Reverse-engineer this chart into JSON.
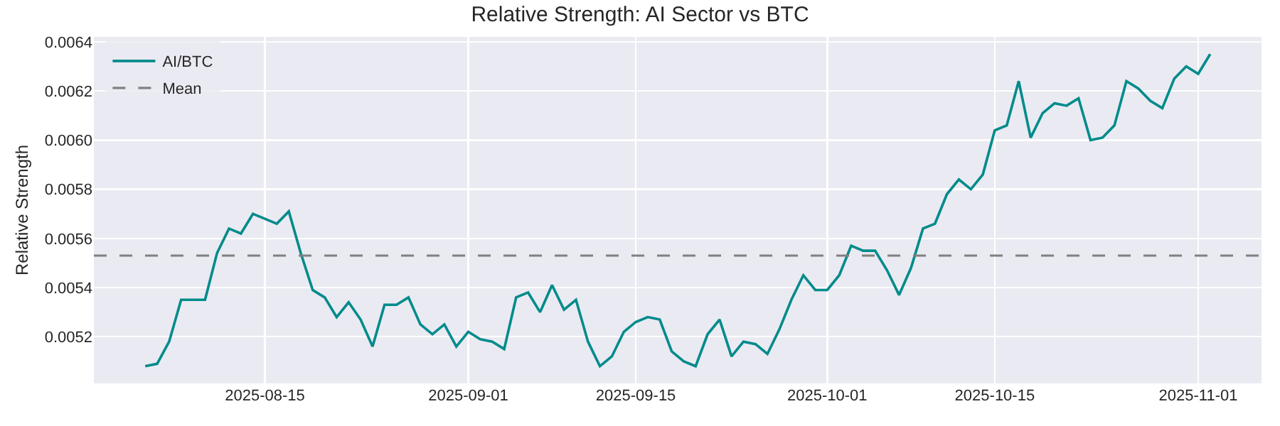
{
  "chart_data": {
    "type": "line",
    "title": "Relative Strength: AI Sector vs BTC",
    "ylabel": "Relative Strength",
    "x": [
      "2025-08-05",
      "2025-08-06",
      "2025-08-07",
      "2025-08-08",
      "2025-08-09",
      "2025-08-10",
      "2025-08-11",
      "2025-08-12",
      "2025-08-13",
      "2025-08-14",
      "2025-08-15",
      "2025-08-16",
      "2025-08-17",
      "2025-08-18",
      "2025-08-19",
      "2025-08-20",
      "2025-08-21",
      "2025-08-22",
      "2025-08-23",
      "2025-08-24",
      "2025-08-25",
      "2025-08-26",
      "2025-08-27",
      "2025-08-28",
      "2025-08-29",
      "2025-08-30",
      "2025-08-31",
      "2025-09-01",
      "2025-09-02",
      "2025-09-03",
      "2025-09-04",
      "2025-09-05",
      "2025-09-06",
      "2025-09-07",
      "2025-09-08",
      "2025-09-09",
      "2025-09-10",
      "2025-09-11",
      "2025-09-12",
      "2025-09-13",
      "2025-09-14",
      "2025-09-15",
      "2025-09-16",
      "2025-09-17",
      "2025-09-18",
      "2025-09-19",
      "2025-09-20",
      "2025-09-21",
      "2025-09-22",
      "2025-09-23",
      "2025-09-24",
      "2025-09-25",
      "2025-09-26",
      "2025-09-27",
      "2025-09-28",
      "2025-09-29",
      "2025-09-30",
      "2025-10-01",
      "2025-10-02",
      "2025-10-03",
      "2025-10-04",
      "2025-10-05",
      "2025-10-06",
      "2025-10-07",
      "2025-10-08",
      "2025-10-09",
      "2025-10-10",
      "2025-10-11",
      "2025-10-12",
      "2025-10-13",
      "2025-10-14",
      "2025-10-15",
      "2025-10-16",
      "2025-10-17",
      "2025-10-18",
      "2025-10-19",
      "2025-10-20",
      "2025-10-21",
      "2025-10-22",
      "2025-10-23",
      "2025-10-24",
      "2025-10-25",
      "2025-10-26",
      "2025-10-27",
      "2025-10-28",
      "2025-10-29",
      "2025-10-30",
      "2025-10-31",
      "2025-11-01",
      "2025-11-02"
    ],
    "series": [
      {
        "name": "AI/BTC",
        "color": "#008b8b",
        "values": [
          0.00508,
          0.00509,
          0.00518,
          0.00535,
          0.00535,
          0.00535,
          0.00554,
          0.00564,
          0.00562,
          0.0057,
          0.00568,
          0.00566,
          0.00571,
          0.00554,
          0.00539,
          0.00536,
          0.00528,
          0.00534,
          0.00527,
          0.00516,
          0.00533,
          0.00533,
          0.00536,
          0.00525,
          0.00521,
          0.00525,
          0.00516,
          0.00522,
          0.00519,
          0.00518,
          0.00515,
          0.00536,
          0.00538,
          0.0053,
          0.00541,
          0.00531,
          0.00535,
          0.00518,
          0.00508,
          0.00512,
          0.00522,
          0.00526,
          0.00528,
          0.00527,
          0.00514,
          0.0051,
          0.00508,
          0.00521,
          0.00527,
          0.00512,
          0.00518,
          0.00517,
          0.00513,
          0.00523,
          0.00535,
          0.00545,
          0.00539,
          0.00539,
          0.00545,
          0.00557,
          0.00555,
          0.00555,
          0.00547,
          0.00537,
          0.00548,
          0.00564,
          0.00566,
          0.00578,
          0.00584,
          0.0058,
          0.00586,
          0.00604,
          0.00606,
          0.00624,
          0.00601,
          0.00611,
          0.00615,
          0.00614,
          0.00617,
          0.006,
          0.00601,
          0.00606,
          0.00624,
          0.00621,
          0.00616,
          0.00613,
          0.00625,
          0.0063,
          0.00627,
          0.00635
        ]
      }
    ],
    "ref_lines": [
      {
        "axis": "y",
        "value": 0.00553,
        "label": "Mean",
        "color": "#808080",
        "line_style": "dashed"
      }
    ],
    "xlim": [
      "2025-07-31T17:00",
      "2025-11-06T07:00"
    ],
    "xticks": [
      "2025-08-15",
      "2025-09-01",
      "2025-09-15",
      "2025-10-01",
      "2025-10-15",
      "2025-11-01"
    ],
    "ylim": [
      0.00501,
      0.00642
    ],
    "yticks": [
      0.0052,
      0.0054,
      0.0056,
      0.0058,
      {
        "value": 0.006,
        "label": "0.0060"
      },
      0.0062,
      0.0064
    ],
    "grid": true,
    "legend": "top left",
    "line_style": "solid",
    "marker": "none"
  }
}
